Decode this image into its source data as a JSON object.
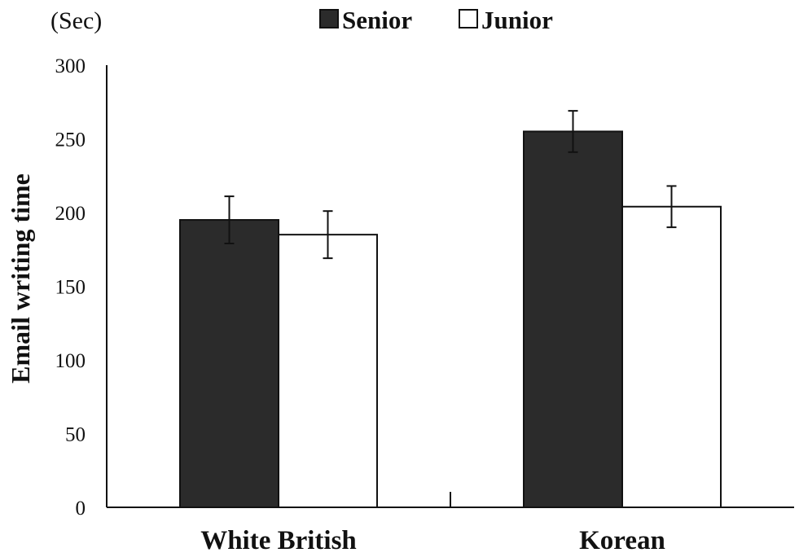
{
  "chart_data": {
    "type": "bar",
    "unit_label": "(Sec)",
    "ylabel": "Email writing time",
    "xlabel": "",
    "categories": [
      "White British",
      "Korean"
    ],
    "series": [
      {
        "name": "Senior",
        "color": "#2b2b2b",
        "values": [
          195,
          255
        ],
        "error": [
          16,
          14
        ]
      },
      {
        "name": "Junior",
        "color": "#ffffff",
        "values": [
          185,
          204
        ],
        "error": [
          16,
          14
        ]
      }
    ],
    "ylim": [
      0,
      300
    ],
    "yticks": [
      "0",
      "50",
      "100",
      "150",
      "200",
      "250",
      "300"
    ],
    "grid": false,
    "legend_position": "top-center"
  }
}
